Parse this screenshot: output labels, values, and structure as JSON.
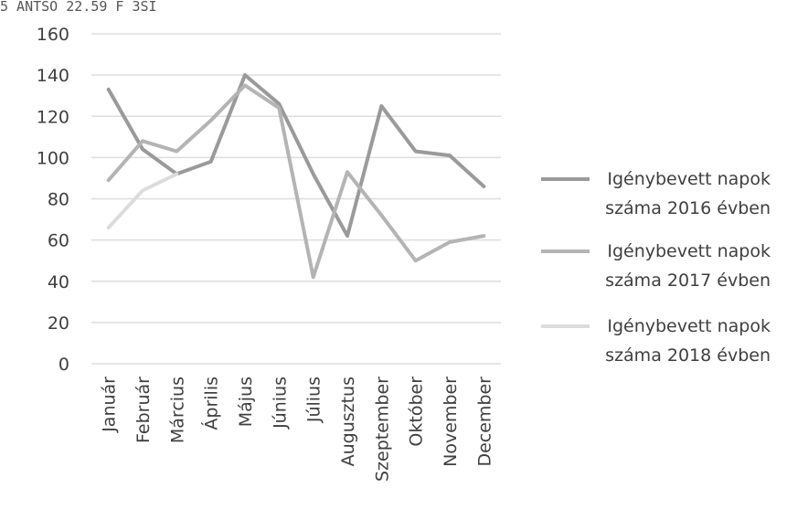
{
  "header_fragment": "5 ANTSO 22.59 F 3SI",
  "chart_data": {
    "type": "line",
    "title": "",
    "xlabel": "",
    "ylabel": "",
    "ylim": [
      0,
      160
    ],
    "yticks": [
      0,
      20,
      40,
      60,
      80,
      100,
      120,
      140,
      160
    ],
    "grid": true,
    "legend_position": "right",
    "categories": [
      "Január",
      "Február",
      "Március",
      "Április",
      "Május",
      "Június",
      "Július",
      "Augusztus",
      "Szeptember",
      "Október",
      "November",
      "December"
    ],
    "series": [
      {
        "name": "Igénybevett napok száma 2016 évben",
        "color": "#9a9a9a",
        "values": [
          133,
          104,
          92,
          98,
          140,
          126,
          92,
          62,
          125,
          103,
          101,
          86
        ]
      },
      {
        "name": "Igénybevett napok száma 2017 évben",
        "color": "#b4b4b4",
        "values": [
          89,
          108,
          103,
          118,
          135,
          124,
          42,
          93,
          72,
          50,
          59,
          62
        ]
      },
      {
        "name": "Igénybevett napok száma 2018 évben",
        "color": "#dcdcdc",
        "values": [
          66,
          84,
          92,
          null,
          null,
          null,
          null,
          null,
          null,
          null,
          null,
          null
        ]
      }
    ]
  }
}
